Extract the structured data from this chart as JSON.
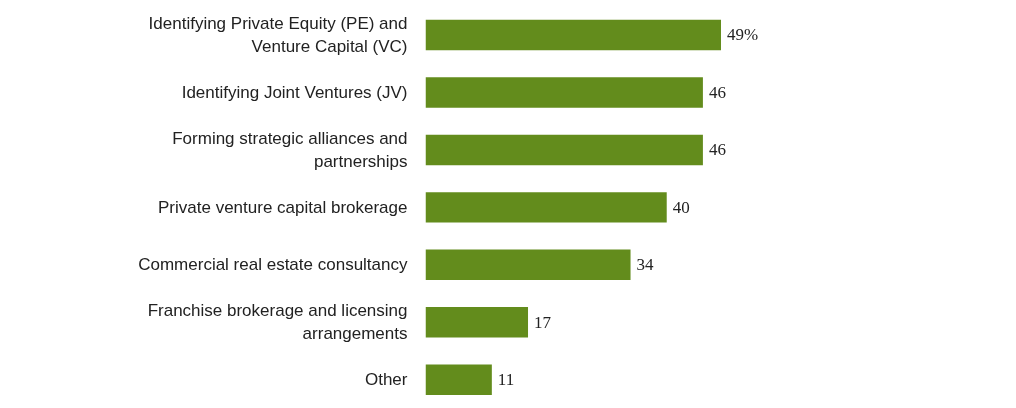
{
  "chart_data": {
    "type": "bar",
    "orientation": "horizontal",
    "categories": [
      "Identifying Private Equity (PE) and Venture Capital (VC)",
      "Identifying Joint Ventures (JV)",
      "Forming strategic alliances and partnerships",
      "Private venture capital brokerage",
      "Commercial real estate consultancy",
      "Franchise brokerage and licensing arrangements",
      "Other"
    ],
    "series": [
      {
        "color": "#638c1c",
        "values": [
          49,
          46,
          46,
          40,
          34,
          17,
          11
        ],
        "value_labels": [
          "49%",
          "46",
          "46",
          "40",
          "34",
          "17",
          "11"
        ]
      }
    ],
    "tick_labels": "y",
    "grid": false
  }
}
